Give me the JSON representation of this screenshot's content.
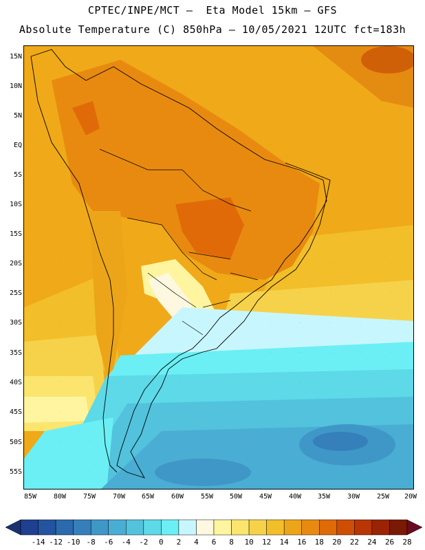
{
  "header": {
    "title_line1": "CPTEC/INPE/MCT —  Eta Model 15km — GFS",
    "title_line2": "Absolute Temperature (C) 850hPa — 10/05/2021 12UTC fct=183h"
  },
  "map": {
    "lat_labels": [
      "15N",
      "10N",
      "5N",
      "EQ",
      "5S",
      "10S",
      "15S",
      "20S",
      "25S",
      "30S",
      "35S",
      "40S",
      "45S",
      "50S",
      "55S"
    ],
    "lon_labels": [
      "85W",
      "80W",
      "75W",
      "70W",
      "65W",
      "60W",
      "55W",
      "50W",
      "45W",
      "40W",
      "35W",
      "30W",
      "25W",
      "20W"
    ]
  },
  "colorbar": {
    "labels": [
      "-14",
      "-12",
      "-10",
      "-8",
      "-6",
      "-4",
      "-2",
      "0",
      "2",
      "4",
      "6",
      "8",
      "10",
      "12",
      "14",
      "16",
      "18",
      "20",
      "22",
      "24",
      "26",
      "28"
    ],
    "colors": [
      "#1f3f8f",
      "#24549f",
      "#2a6aad",
      "#3580bb",
      "#3f97c8",
      "#4aadd3",
      "#53c2dd",
      "#5dd9e8",
      "#6beff4",
      "#c8f6ff",
      "#fff8e0",
      "#fff5a0",
      "#fbe56e",
      "#f6d24a",
      "#f2be2a",
      "#eca518",
      "#e88a10",
      "#e06a08",
      "#cf4d05",
      "#b83604",
      "#9a2404",
      "#7a1a04"
    ],
    "left_cap": "#1a3270",
    "right_cap": "#6a0a20"
  }
}
